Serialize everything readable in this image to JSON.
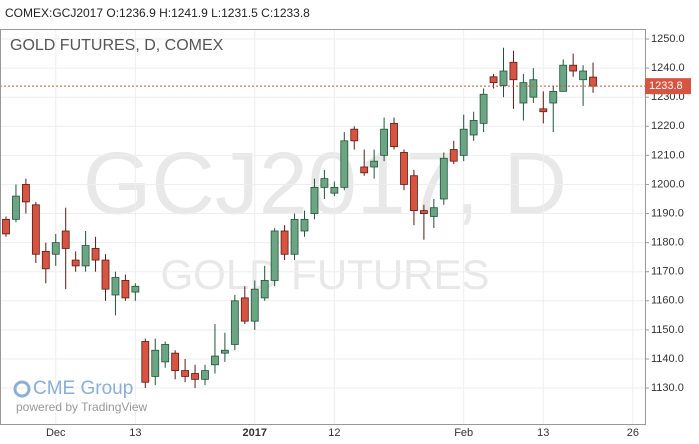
{
  "chart_data": {
    "type": "candlestick",
    "header": "COMEX:GCJ2017 O:1236.9 H:1241.9 L:1231.5 C:1233.8",
    "title": "GOLD FUTURES, D, COMEX",
    "watermark": "GCJ2017, D",
    "watermark_subtitle": "GOLD FUTURES",
    "logo": "CME Group",
    "attribution": "powered by TradingView",
    "up_color": "#6ba583",
    "down_color": "#d75442",
    "last_price": 1233.8,
    "last_price_color": "#d75442",
    "grid": true,
    "x": [
      null,
      null,
      null,
      null,
      null,
      "Dec",
      null,
      null,
      null,
      null,
      null,
      null,
      null,
      "13",
      null,
      null,
      null,
      null,
      null,
      null,
      null,
      null,
      null,
      null,
      null,
      "2017",
      null,
      null,
      null,
      null,
      null,
      null,
      null,
      "12",
      null,
      null,
      null,
      null,
      null,
      null,
      null,
      null,
      null,
      null,
      null,
      null,
      "Feb",
      null,
      null,
      null,
      null,
      null,
      null,
      null,
      "13",
      null,
      null,
      null,
      null,
      null,
      null,
      null,
      null,
      "26"
    ],
    "open": [
      1188,
      1188,
      1200,
      1193,
      1177,
      1176,
      1184,
      1174,
      1172,
      1178,
      1174,
      1162,
      1167,
      1163,
      1146,
      1134,
      1139,
      1142,
      1136,
      1135,
      1133,
      1138,
      1142,
      1145,
      1161,
      1153,
      1161,
      1167,
      1184,
      1176,
      1184,
      1190,
      1199,
      1197,
      1199,
      1219,
      1206,
      1206,
      1210,
      1221,
      1211,
      1203,
      1191,
      1189,
      1195,
      1212,
      1210,
      1217,
      1221,
      1237,
      1234,
      1242,
      1228,
      1230,
      1226,
      1228,
      1232,
      1241,
      1236,
      1236.9,
      null,
      null,
      null,
      null
    ],
    "high": [
      1189,
      1200,
      1202,
      1194,
      1180,
      1183,
      1192,
      1177,
      1184,
      1182,
      1176,
      1170,
      1169,
      1166,
      1147,
      1147,
      1146,
      1143,
      1140,
      1138,
      1138,
      1152,
      1149,
      1162,
      1165,
      1167,
      1172,
      1185,
      1186,
      1190,
      1191,
      1202,
      1205,
      1201,
      1218,
      1220,
      1212,
      1212,
      1223,
      1223,
      1212,
      1205,
      1193,
      1195,
      1211,
      1215,
      1224,
      1225,
      1233,
      1238,
      1247,
      1246,
      1238,
      1240,
      1232,
      1234,
      1243,
      1245,
      1241,
      1241.9,
      null,
      null,
      null,
      null
    ],
    "low": [
      1182,
      1187,
      1190,
      1173,
      1166,
      1172,
      1164,
      1170,
      1170,
      1170,
      1160,
      1155,
      1160,
      1160,
      1130,
      1131,
      1137,
      1133,
      1132,
      1130,
      1131,
      1135,
      1139,
      1143,
      1152,
      1150,
      1160,
      1165,
      1174,
      1174,
      1182,
      1188,
      1195,
      1196,
      1198,
      1212,
      1203,
      1202,
      1208,
      1212,
      1198,
      1186,
      1181,
      1185,
      1193,
      1207,
      1208,
      1215,
      1218,
      1233,
      1230,
      1226,
      1222,
      1228,
      1221,
      1218,
      1232,
      1237,
      1227,
      1231.5,
      null,
      null,
      null,
      null
    ],
    "close": [
      1183,
      1196,
      1194,
      1176,
      1171,
      1180,
      1178,
      1172,
      1179,
      1174,
      1164,
      1168,
      1161,
      1165,
      1132,
      1143,
      1145,
      1136,
      1134,
      1133,
      1136,
      1141,
      1143,
      1160,
      1153,
      1164,
      1167,
      1184,
      1176,
      1188,
      1188,
      1199,
      1202,
      1199,
      1215,
      1215,
      1204,
      1208,
      1219,
      1213,
      1200,
      1191,
      1190,
      1192,
      1209,
      1208,
      1219,
      1222,
      1231,
      1235,
      1239,
      1236,
      1235,
      1236,
      1225,
      1232,
      1241,
      1239,
      1239,
      1233.8,
      null,
      null,
      null,
      null
    ],
    "ylim": [
      1117.3,
      1253.1
    ],
    "yticks": [
      {
        "value": 1130,
        "label": "1130.0"
      },
      {
        "value": 1140,
        "label": "1140.0"
      },
      {
        "value": 1150,
        "label": "1150.0"
      },
      {
        "value": 1160,
        "label": "1160.0"
      },
      {
        "value": 1170,
        "label": "1170.0"
      },
      {
        "value": 1180,
        "label": "1180.0"
      },
      {
        "value": 1190,
        "label": "1190.0"
      },
      {
        "value": 1200,
        "label": "1200.0"
      },
      {
        "value": 1210,
        "label": "1210.0"
      },
      {
        "value": 1220,
        "label": "1220.0"
      },
      {
        "value": 1230,
        "label": "1230.0"
      },
      {
        "value": 1240,
        "label": "1240.0"
      },
      {
        "value": 1250,
        "label": "1250.0"
      }
    ]
  }
}
